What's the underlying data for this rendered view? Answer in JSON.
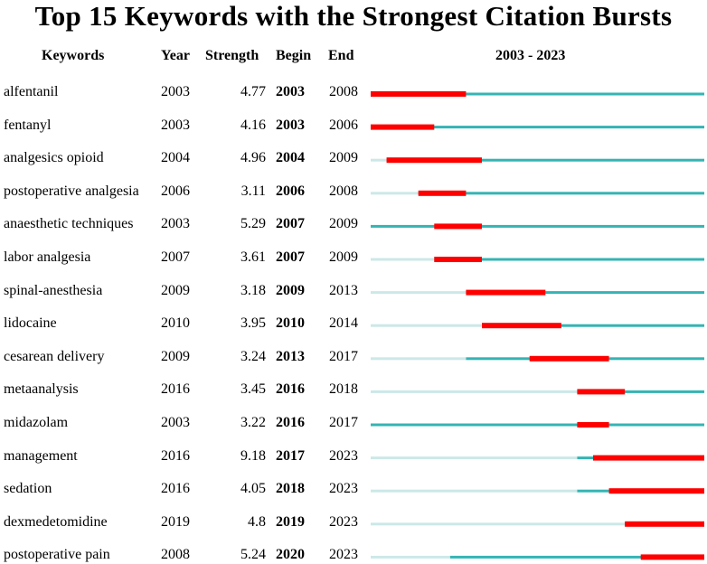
{
  "chart_data": {
    "type": "table",
    "title": "Top 15 Keywords with the Strongest Citation Bursts",
    "columns": [
      "Keywords",
      "Year",
      "Strength",
      "Begin",
      "End",
      "2003 - 2023"
    ],
    "timeline": {
      "start": 2003,
      "end": 2023,
      "label": "2003 - 2023"
    },
    "rows": [
      {
        "keyword": "alfentanil",
        "year": 2003,
        "strength": "4.77",
        "begin": 2003,
        "end": 2008
      },
      {
        "keyword": "fentanyl",
        "year": 2003,
        "strength": "4.16",
        "begin": 2003,
        "end": 2006
      },
      {
        "keyword": "analgesics opioid",
        "year": 2004,
        "strength": "4.96",
        "begin": 2004,
        "end": 2009
      },
      {
        "keyword": "postoperative analgesia",
        "year": 2006,
        "strength": "3.11",
        "begin": 2006,
        "end": 2008
      },
      {
        "keyword": "anaesthetic techniques",
        "year": 2003,
        "strength": "5.29",
        "begin": 2007,
        "end": 2009
      },
      {
        "keyword": "labor analgesia",
        "year": 2007,
        "strength": "3.61",
        "begin": 2007,
        "end": 2009
      },
      {
        "keyword": "spinal-anesthesia",
        "year": 2009,
        "strength": "3.18",
        "begin": 2009,
        "end": 2013
      },
      {
        "keyword": "lidocaine",
        "year": 2010,
        "strength": "3.95",
        "begin": 2010,
        "end": 2014
      },
      {
        "keyword": "cesarean delivery",
        "year": 2009,
        "strength": "3.24",
        "begin": 2013,
        "end": 2017
      },
      {
        "keyword": "metaanalysis",
        "year": 2016,
        "strength": "3.45",
        "begin": 2016,
        "end": 2018
      },
      {
        "keyword": "midazolam",
        "year": 2003,
        "strength": "3.22",
        "begin": 2016,
        "end": 2017
      },
      {
        "keyword": "management",
        "year": 2016,
        "strength": "9.18",
        "begin": 2017,
        "end": 2023
      },
      {
        "keyword": "sedation",
        "year": 2016,
        "strength": "4.05",
        "begin": 2018,
        "end": 2023
      },
      {
        "keyword": "dexmedetomidine",
        "year": 2019,
        "strength": "4.8",
        "begin": 2019,
        "end": 2023
      },
      {
        "keyword": "postoperative pain",
        "year": 2008,
        "strength": "5.24",
        "begin": 2020,
        "end": 2023
      }
    ],
    "colors": {
      "burst": "#ff0000",
      "active": "#35b4b4",
      "inactive": "#cce8e8"
    }
  }
}
